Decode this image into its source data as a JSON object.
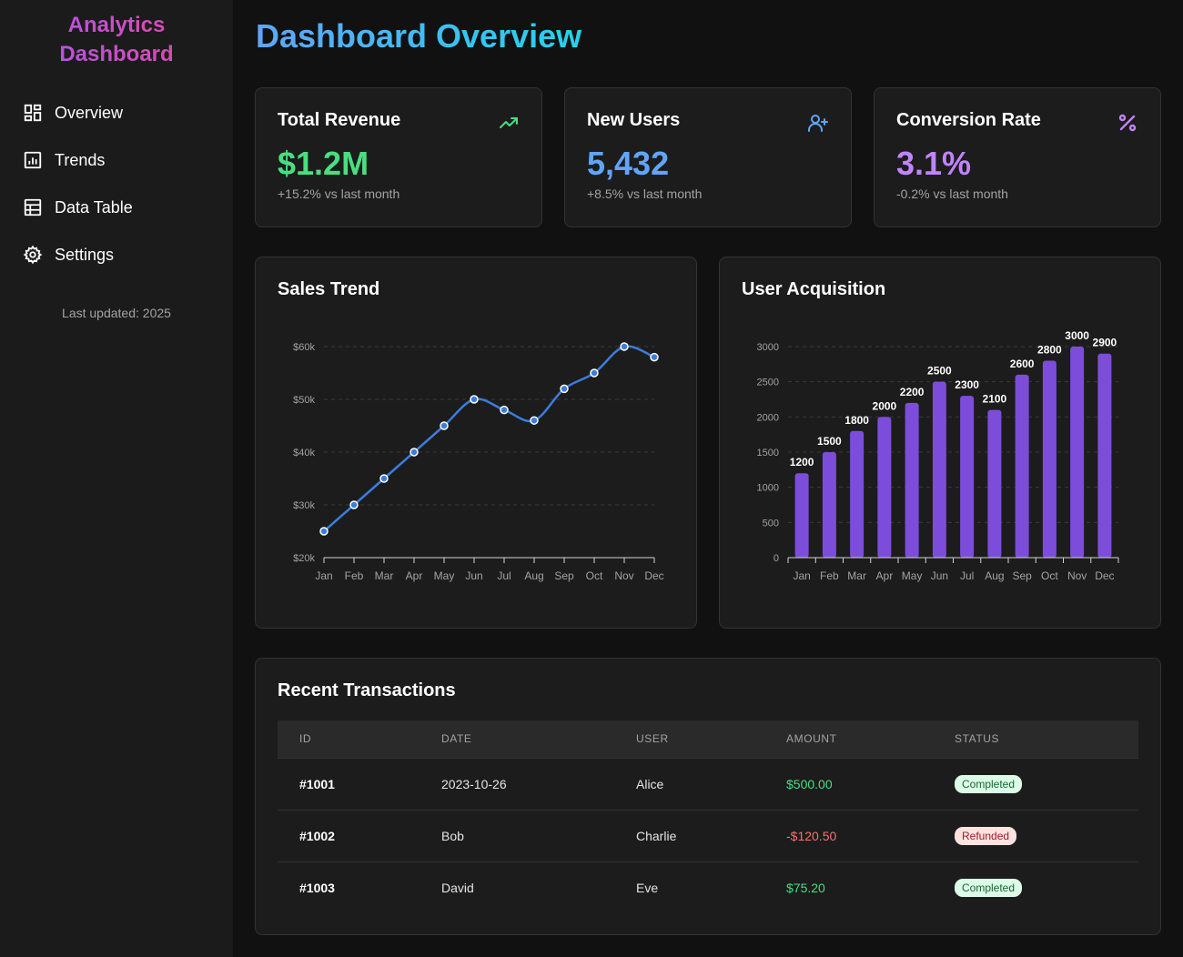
{
  "sidebar": {
    "brand_line1": "Analytics",
    "brand_line2": "Dashboard",
    "items": [
      {
        "label": "Overview",
        "icon": "grid-icon"
      },
      {
        "label": "Trends",
        "icon": "bar-chart-icon"
      },
      {
        "label": "Data Table",
        "icon": "table-icon"
      },
      {
        "label": "Settings",
        "icon": "gear-icon"
      }
    ],
    "last_updated": "Last updated: 2025"
  },
  "header": {
    "title": "Dashboard Overview"
  },
  "kpis": [
    {
      "title": "Total Revenue",
      "value": "$1.2M",
      "change": "+15.2% vs last month",
      "icon": "trending-up-icon",
      "color": "#4ade80"
    },
    {
      "title": "New Users",
      "value": "5,432",
      "change": "+8.5% vs last month",
      "icon": "user-plus-icon",
      "color": "#60a5fa"
    },
    {
      "title": "Conversion Rate",
      "value": "3.1%",
      "change": "-0.2% vs last month",
      "icon": "percent-icon",
      "color": "#c084fc"
    }
  ],
  "chart_data": [
    {
      "type": "line",
      "title": "Sales Trend",
      "categories": [
        "Jan",
        "Feb",
        "Mar",
        "Apr",
        "May",
        "Jun",
        "Jul",
        "Aug",
        "Sep",
        "Oct",
        "Nov",
        "Dec"
      ],
      "values": [
        25,
        30,
        35,
        40,
        45,
        50,
        48,
        46,
        52,
        55,
        60,
        58
      ],
      "ylim": [
        20,
        60
      ],
      "yticks": [
        20,
        30,
        40,
        50,
        60
      ],
      "ytick_labels": [
        "$20k",
        "$30k",
        "$40k",
        "$50k",
        "$60k"
      ],
      "color": "#3b7ddd",
      "grid": true
    },
    {
      "type": "bar",
      "title": "User Acquisition",
      "categories": [
        "Jan",
        "Feb",
        "Mar",
        "Apr",
        "May",
        "Jun",
        "Jul",
        "Aug",
        "Sep",
        "Oct",
        "Nov",
        "Dec"
      ],
      "values": [
        1200,
        1500,
        1800,
        2000,
        2200,
        2500,
        2300,
        2100,
        2600,
        2800,
        3000,
        2900
      ],
      "ylim": [
        0,
        3000
      ],
      "yticks": [
        0,
        500,
        1000,
        1500,
        2000,
        2500,
        3000
      ],
      "color": "#7c4ddb",
      "grid": true
    }
  ],
  "transactions": {
    "title": "Recent Transactions",
    "columns": [
      "ID",
      "DATE",
      "USER",
      "AMOUNT",
      "STATUS"
    ],
    "rows": [
      {
        "id": "#1001",
        "date": "2023-10-26",
        "user": "Alice",
        "amount": "$500.00",
        "status": "Completed",
        "amount_color": "#4ade80"
      },
      {
        "id": "#1002",
        "date": "Bob",
        "user": "Charlie",
        "amount": "-$120.50",
        "status": "Refunded",
        "amount_color": "#f87171"
      },
      {
        "id": "#1003",
        "date": "David",
        "user": "Eve",
        "amount": "$75.20",
        "status": "Completed",
        "amount_color": "#4ade80"
      }
    ]
  }
}
